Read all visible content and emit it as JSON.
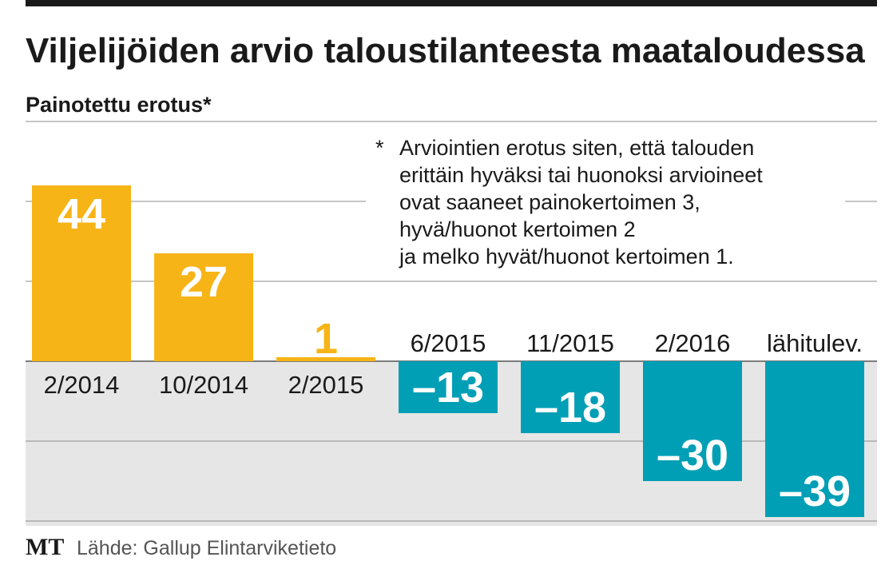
{
  "title": "Viljelijöiden arvio taloustilanteesta maataloudessa",
  "subtitle": "Painotettu erotus*",
  "footnote": {
    "marker": "*",
    "lines": [
      "Arviointien erotus siten, että talouden",
      "erittäin hyväksi tai huonoksi arvioineet",
      "ovat saaneet painokertoimen 3,",
      "hyvä/huonot kertoimen 2",
      "ja melko hyvät/huonot kertoimen 1."
    ]
  },
  "brand": "MT",
  "source": "Lähde: Gallup Elintarviketieto",
  "colors": {
    "positive": "#f7b417",
    "negative": "#009fb5",
    "value_positive": "#ffffff",
    "value_negative": "#ffffff",
    "value_small": "#f7b417",
    "negative_band": "#e6e6e6",
    "grid": "#8c8c8c",
    "top_rule": "#1a1a1a"
  },
  "chart_data": {
    "type": "bar",
    "title": "Viljelijöiden arvio taloustilanteesta maataloudessa",
    "subtitle": "Painotettu erotus*",
    "categories": [
      "2/2014",
      "10/2014",
      "2/2015",
      "6/2015",
      "11/2015",
      "2/2016",
      "lähitulev."
    ],
    "values": [
      44,
      27,
      1,
      -13,
      -18,
      -30,
      -39
    ],
    "value_labels": [
      "44",
      "27",
      "1",
      "–13",
      "–18",
      "–30",
      "–39"
    ],
    "ylim": [
      -40,
      60
    ],
    "grid": true,
    "legend": "none"
  }
}
